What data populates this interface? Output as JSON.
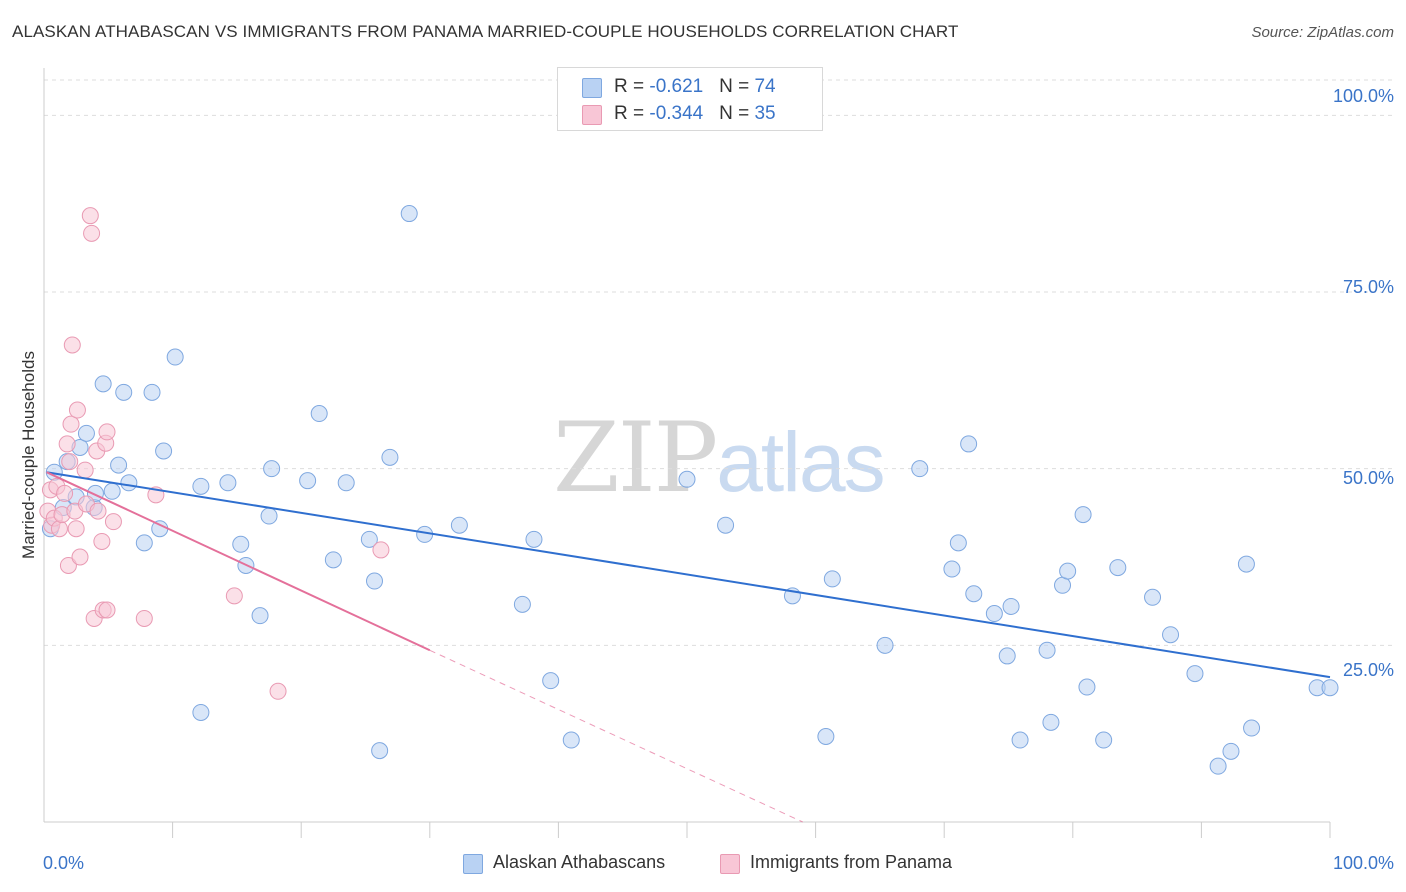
{
  "header": {
    "title": "ALASKAN ATHABASCAN VS IMMIGRANTS FROM PANAMA MARRIED-COUPLE HOUSEHOLDS CORRELATION CHART",
    "source": "Source: ZipAtlas.com"
  },
  "watermark": {
    "zip": "ZIP",
    "atlas": "atlas"
  },
  "legend_top": {
    "rows": [
      {
        "r_label": "R = ",
        "r_value": "-0.621",
        "n_label": "N = ",
        "n_value": "74"
      },
      {
        "r_label": "R = ",
        "r_value": "-0.344",
        "n_label": "N = ",
        "n_value": "35"
      }
    ]
  },
  "legend_bottom": {
    "items": [
      {
        "label": "Alaskan Athabascans"
      },
      {
        "label": "Immigrants from Panama"
      }
    ]
  },
  "colors": {
    "blue_fill": "#b9d2f3",
    "blue_stroke": "#7fa8e0",
    "blue_line": "#2f6fcf",
    "pink_fill": "#f8c6d6",
    "pink_stroke": "#e99ab3",
    "pink_line": "#e4709a",
    "grid": "#dddddd",
    "axis_text": "#3a74c8"
  },
  "chart_data": {
    "type": "scatter",
    "title": "ALASKAN ATHABASCAN VS IMMIGRANTS FROM PANAMA MARRIED-COUPLE HOUSEHOLDS CORRELATION CHART",
    "xlabel": "",
    "ylabel": "Married-couple Households",
    "xlim": [
      0,
      100
    ],
    "ylim": [
      0,
      105
    ],
    "x_tick_labels": [
      "0.0%",
      "100.0%"
    ],
    "y_ticks": [
      25,
      50,
      75,
      100
    ],
    "y_tick_labels": [
      "25.0%",
      "50.0%",
      "75.0%",
      "100.0%"
    ],
    "grid": true,
    "series": [
      {
        "name": "Alaskan Athabascans",
        "color": "blue",
        "r": -0.621,
        "n": 74,
        "trend": {
          "x0": 0.2,
          "y0": 49.5,
          "x1": 100,
          "y1": 20.5,
          "dashed_to": null
        },
        "points": [
          [
            0.5,
            41.5
          ],
          [
            0.8,
            49.5
          ],
          [
            1.5,
            44.5
          ],
          [
            1.8,
            51
          ],
          [
            2.5,
            46
          ],
          [
            2.8,
            53
          ],
          [
            3.3,
            55
          ],
          [
            3.9,
            44.5
          ],
          [
            4,
            46.5
          ],
          [
            4.6,
            62
          ],
          [
            5.3,
            46.8
          ],
          [
            5.8,
            50.5
          ],
          [
            6.2,
            60.8
          ],
          [
            6.6,
            48
          ],
          [
            7.8,
            39.5
          ],
          [
            8.4,
            60.8
          ],
          [
            9,
            41.5
          ],
          [
            9.3,
            52.5
          ],
          [
            10.2,
            65.8
          ],
          [
            12.2,
            15.5
          ],
          [
            12.2,
            47.5
          ],
          [
            14.3,
            48
          ],
          [
            15.3,
            39.3
          ],
          [
            15.7,
            36.3
          ],
          [
            16.8,
            29.2
          ],
          [
            17.5,
            43.3
          ],
          [
            17.7,
            50
          ],
          [
            20.5,
            48.3
          ],
          [
            21.4,
            57.8
          ],
          [
            22.5,
            37.1
          ],
          [
            23.5,
            48
          ],
          [
            25.3,
            40
          ],
          [
            25.7,
            34.1
          ],
          [
            26.1,
            10.1
          ],
          [
            26.9,
            51.6
          ],
          [
            28.4,
            86.1
          ],
          [
            29.6,
            40.7
          ],
          [
            32.3,
            42
          ],
          [
            37.2,
            30.8
          ],
          [
            38.1,
            40
          ],
          [
            39.4,
            20
          ],
          [
            41,
            11.6
          ],
          [
            50,
            48.5
          ],
          [
            53,
            42
          ],
          [
            58.2,
            32
          ],
          [
            60.8,
            12.1
          ],
          [
            61.3,
            34.4
          ],
          [
            65.4,
            25
          ],
          [
            68.1,
            50
          ],
          [
            70.6,
            35.8
          ],
          [
            71.1,
            39.5
          ],
          [
            71.9,
            53.5
          ],
          [
            72.3,
            32.3
          ],
          [
            73.9,
            29.5
          ],
          [
            74.9,
            23.5
          ],
          [
            75.2,
            30.5
          ],
          [
            75.9,
            11.6
          ],
          [
            78,
            24.3
          ],
          [
            78.3,
            14.1
          ],
          [
            79.2,
            33.5
          ],
          [
            79.6,
            35.5
          ],
          [
            80.8,
            43.5
          ],
          [
            81.1,
            19.1
          ],
          [
            82.4,
            11.6
          ],
          [
            83.5,
            36
          ],
          [
            86.2,
            31.8
          ],
          [
            87.6,
            26.5
          ],
          [
            89.5,
            21
          ],
          [
            91.3,
            7.9
          ],
          [
            92.3,
            10
          ],
          [
            93.5,
            36.5
          ],
          [
            93.9,
            13.3
          ],
          [
            99,
            19
          ],
          [
            100,
            19
          ]
        ]
      },
      {
        "name": "Immigrants from Panama",
        "color": "pink",
        "r": -0.344,
        "n": 35,
        "trend": {
          "x0": 0.2,
          "y0": 49.5,
          "x1": 30,
          "y1": 24.3,
          "dashed_to": [
            59,
            0
          ]
        },
        "points": [
          [
            0.3,
            44
          ],
          [
            0.5,
            47
          ],
          [
            0.6,
            42
          ],
          [
            0.8,
            43
          ],
          [
            1,
            47.5
          ],
          [
            1.2,
            41.5
          ],
          [
            1.4,
            43.5
          ],
          [
            1.6,
            46.5
          ],
          [
            1.8,
            53.5
          ],
          [
            1.9,
            36.3
          ],
          [
            2,
            51
          ],
          [
            2.1,
            56.3
          ],
          [
            2.2,
            67.5
          ],
          [
            2.4,
            44
          ],
          [
            2.5,
            41.5
          ],
          [
            2.6,
            58.3
          ],
          [
            2.8,
            37.5
          ],
          [
            3.2,
            49.8
          ],
          [
            3.3,
            45
          ],
          [
            3.6,
            85.8
          ],
          [
            3.7,
            83.3
          ],
          [
            3.9,
            28.8
          ],
          [
            4.1,
            52.5
          ],
          [
            4.2,
            44
          ],
          [
            4.5,
            39.7
          ],
          [
            4.8,
            53.6
          ],
          [
            4.9,
            55.2
          ],
          [
            4.6,
            30
          ],
          [
            4.9,
            30
          ],
          [
            5.4,
            42.5
          ],
          [
            7.8,
            28.8
          ],
          [
            8.7,
            46.3
          ],
          [
            14.8,
            32
          ],
          [
            18.2,
            18.5
          ],
          [
            26.2,
            38.5
          ]
        ]
      }
    ]
  }
}
